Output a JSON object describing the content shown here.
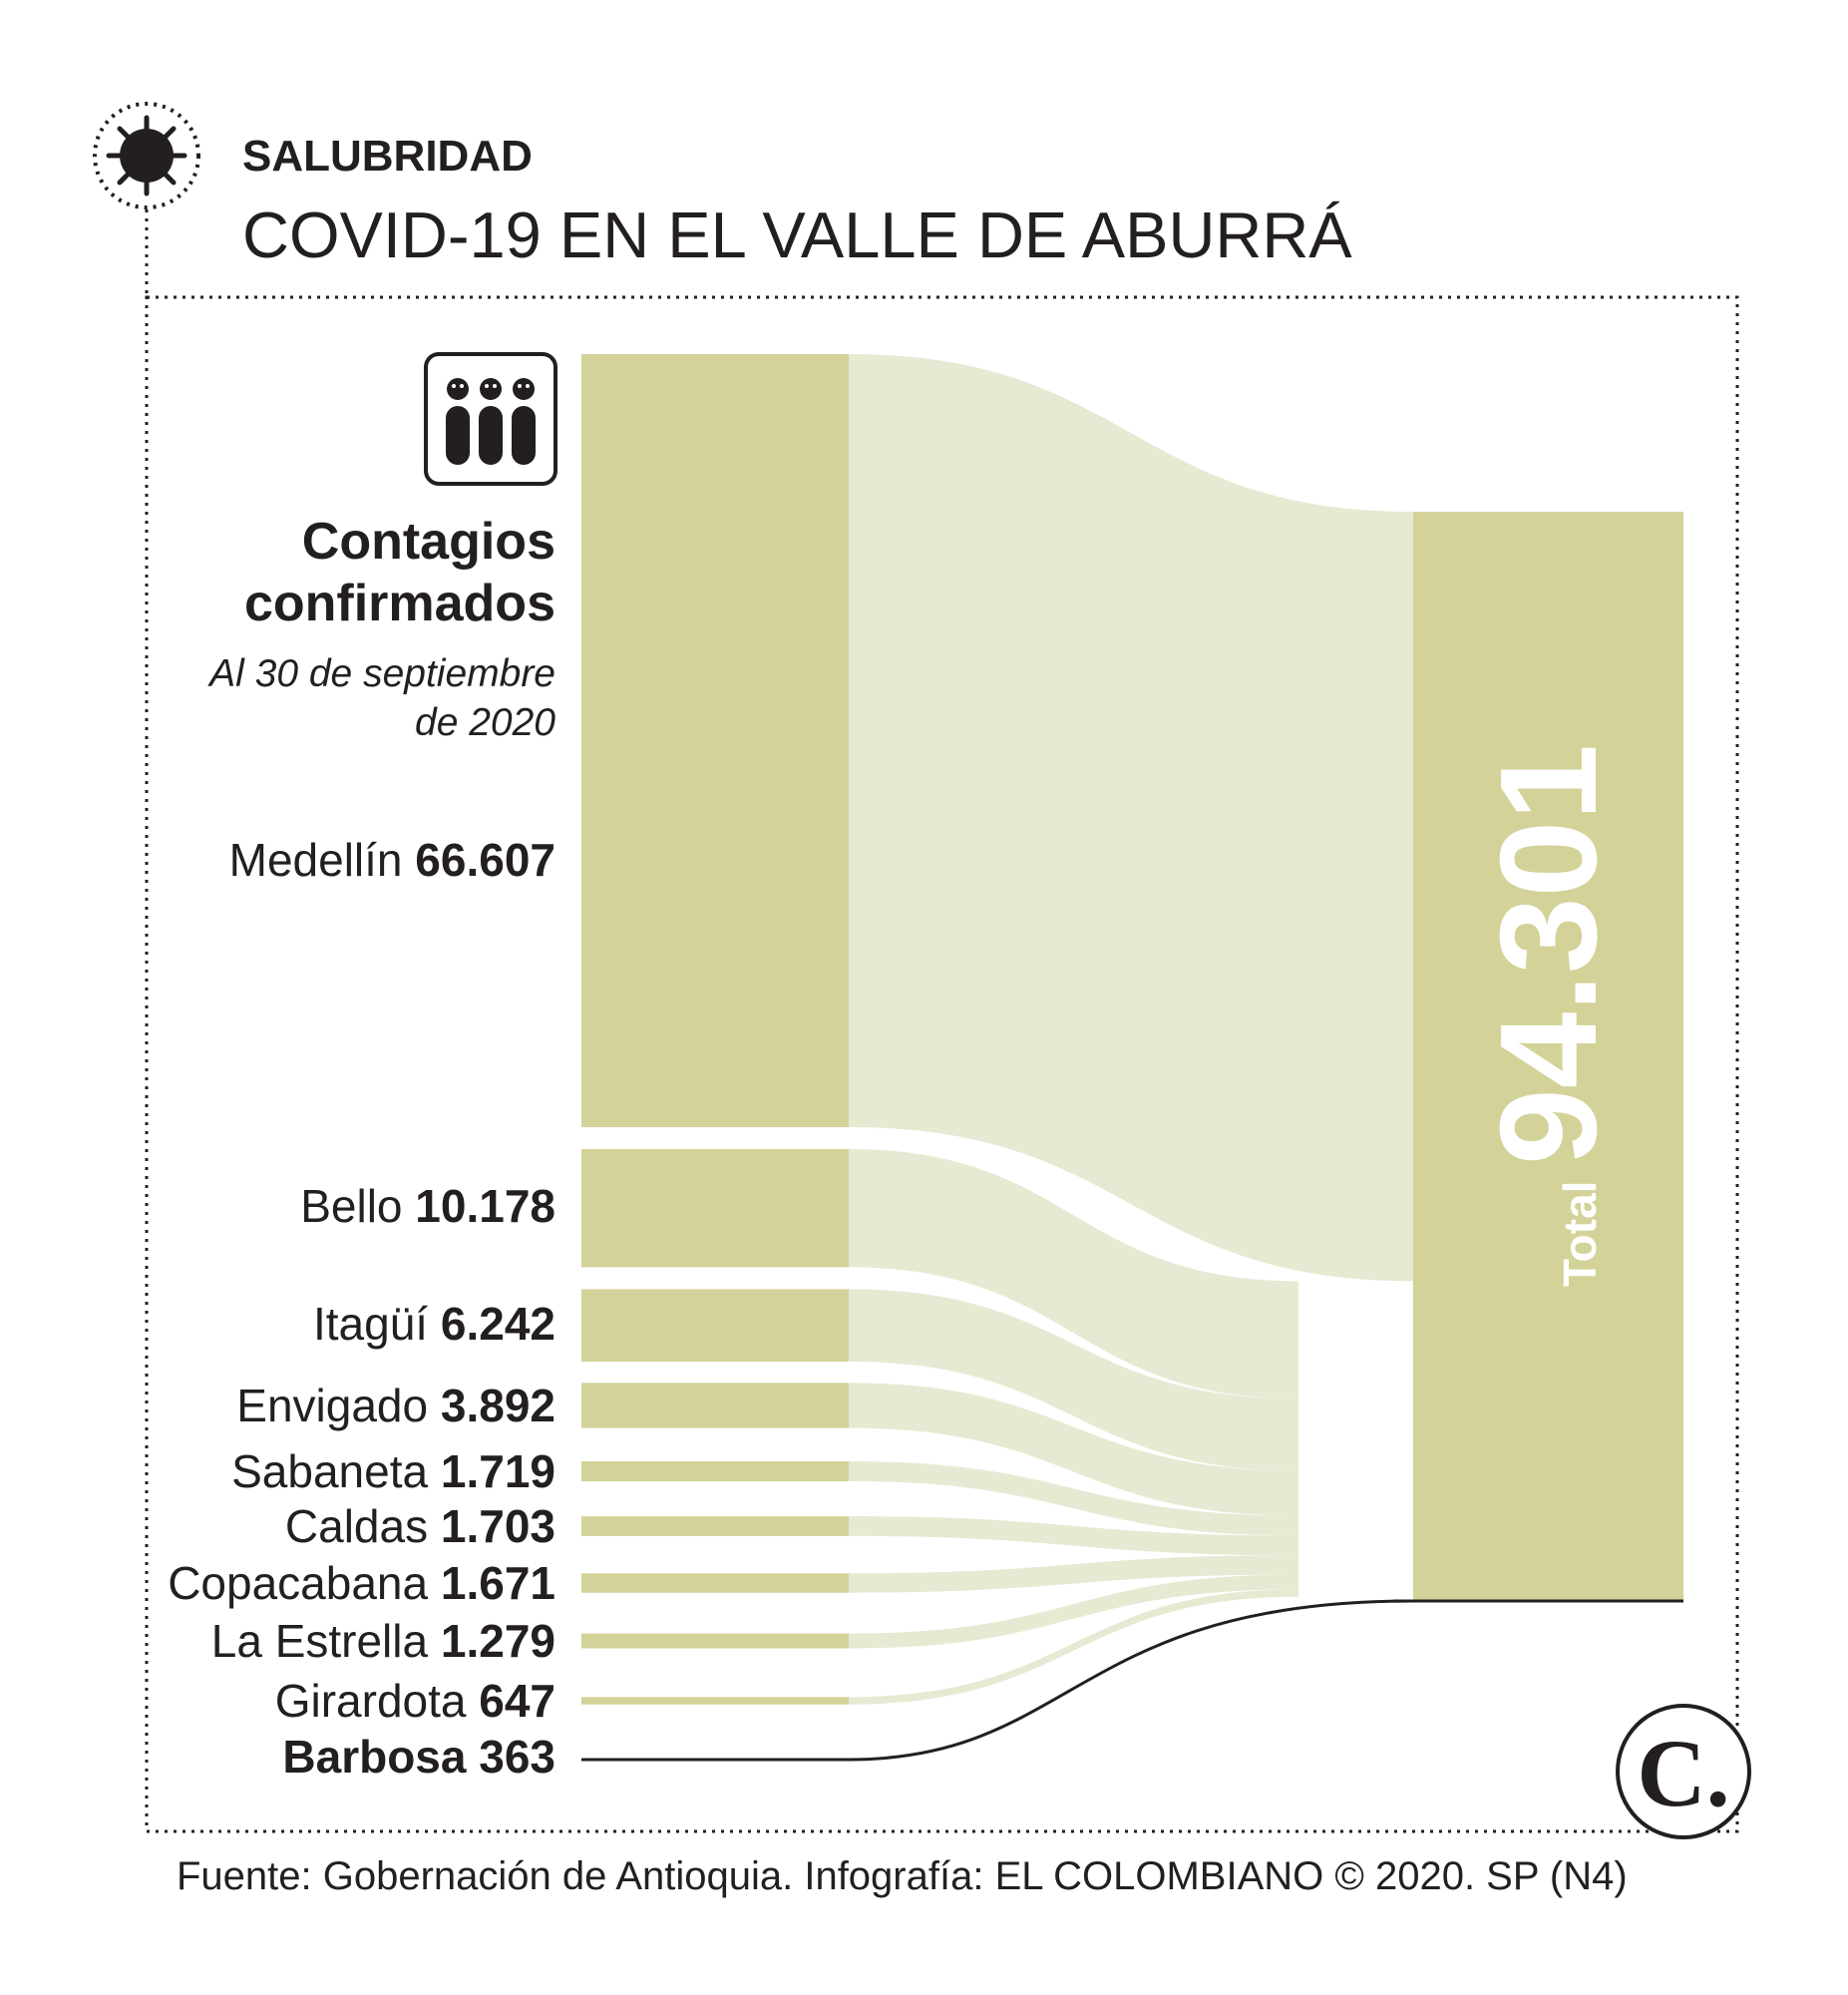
{
  "header": {
    "section": "SALUBRIDAD",
    "title": "COVID-19 EN EL VALLE DE ABURRÁ"
  },
  "icons": {
    "virus": "virus-icon",
    "people": "people-icon",
    "brand": "el-colombiano-logo"
  },
  "brand_letter": "C.",
  "chart_data": {
    "type": "sankey",
    "title": "Contagios confirmados",
    "title_line1": "Contagios",
    "title_line2": "confirmados",
    "subtitle_line1": "Al 30 de septiembre",
    "subtitle_line2": "de 2020",
    "nodes": [
      {
        "name": "Medellín",
        "value": 66607,
        "value_label": "66.607"
      },
      {
        "name": "Bello",
        "value": 10178,
        "value_label": "10.178"
      },
      {
        "name": "Itagüí",
        "value": 6242,
        "value_label": "6.242"
      },
      {
        "name": "Envigado",
        "value": 3892,
        "value_label": "3.892"
      },
      {
        "name": "Sabaneta",
        "value": 1719,
        "value_label": "1.719"
      },
      {
        "name": "Caldas",
        "value": 1703,
        "value_label": "1.703"
      },
      {
        "name": "Copacabana",
        "value": 1671,
        "value_label": "1.671"
      },
      {
        "name": "La Estrella",
        "value": 1279,
        "value_label": "1.279"
      },
      {
        "name": "Girardota",
        "value": 647,
        "value_label": "647"
      },
      {
        "name": "Barbosa",
        "value": 363,
        "value_label": "363"
      }
    ],
    "total": {
      "label": "Total",
      "value": 94301,
      "value_label": "94.301"
    },
    "colors": {
      "node": "#d3d298",
      "flow": "#e8e9d3",
      "highlight": "#231f20"
    }
  },
  "footer": {
    "source": "Fuente: Gobernación de Antioquia. Infografía: EL COLOMBIANO © 2020. SP (N4)"
  }
}
